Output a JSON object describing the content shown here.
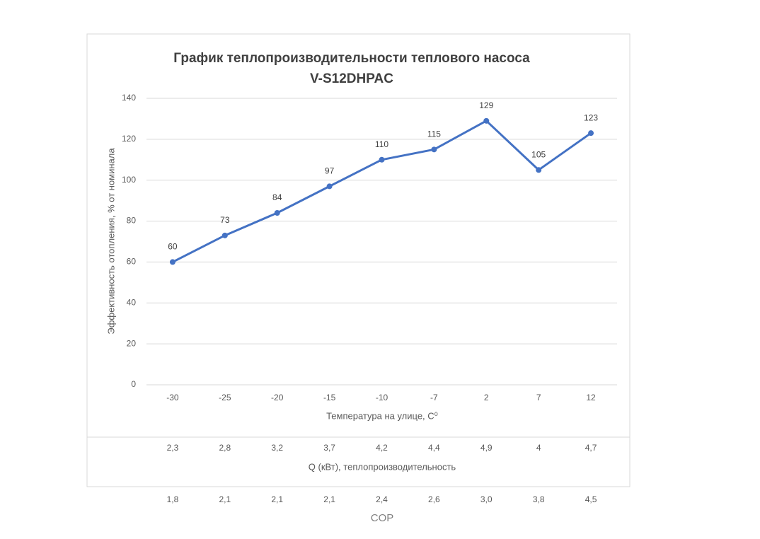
{
  "chart_data": {
    "type": "line",
    "title": [
      "График теплопроизводительности теплового насоса",
      "V-S12DHPAC"
    ],
    "xlabel": "Температура на улице, С⁰",
    "ylabel": "Эффективность  отопления, % от номинала",
    "categories": [
      "-30",
      "-25",
      "-20",
      "-15",
      "-10",
      "-7",
      "2",
      "7",
      "12"
    ],
    "values": [
      60,
      73,
      84,
      97,
      110,
      115,
      129,
      105,
      123
    ],
    "color": "#4472c4",
    "ylim": [
      0,
      140
    ],
    "yticks": [
      0,
      20,
      40,
      60,
      80,
      100,
      120,
      140
    ],
    "grid": true,
    "extra_rows": [
      {
        "label": "Q (кВт), теплопроизводительность",
        "cells": [
          "2,3",
          "2,8",
          "3,2",
          "3,7",
          "4,2",
          "4,4",
          "4,9",
          "4",
          "4,7"
        ]
      },
      {
        "label": "COP",
        "cells": [
          "1,8",
          "2,1",
          "2,1",
          "2,1",
          "2,4",
          "2,6",
          "3,0",
          "3,8",
          "4,5"
        ]
      }
    ]
  }
}
